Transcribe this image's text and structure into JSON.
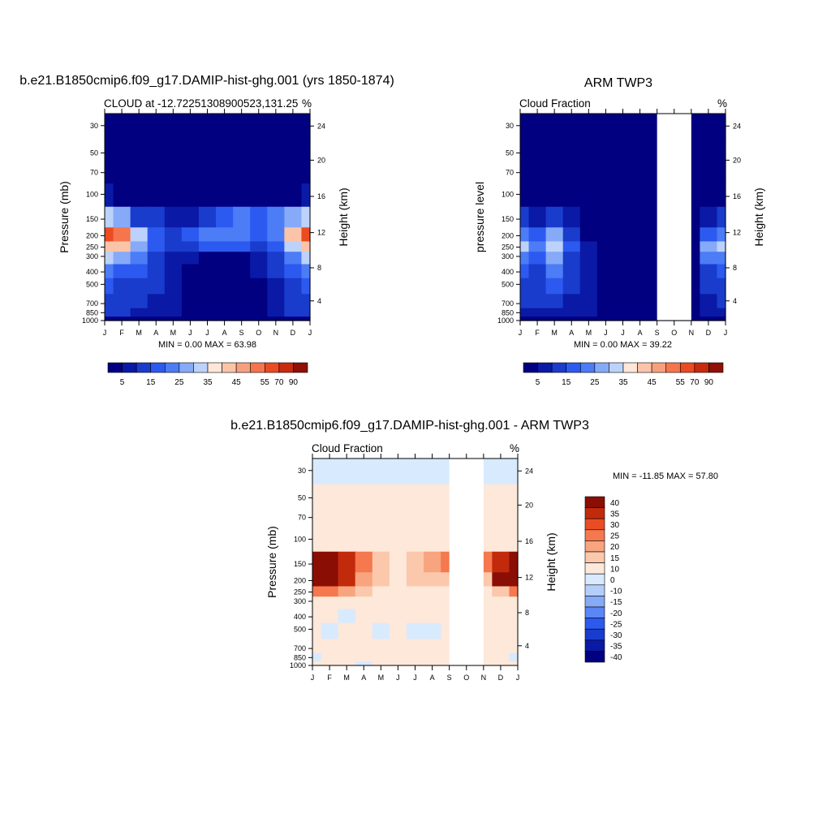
{
  "chart_data": [
    {
      "type": "heatmap",
      "title": "b.e21.B1850cmip6.f09_g17.DAMIP-hist-ghg.001 (yrs 1850-1874)",
      "left_label": "CLOUD at -12.72251308900523,131.25",
      "right_label": "%",
      "ylabel": "Pressure (mb)",
      "ylabel_right": "Height (km)",
      "x": [
        "J",
        "F",
        "M",
        "A",
        "M",
        "J",
        "J",
        "A",
        "S",
        "O",
        "N",
        "D",
        "J"
      ],
      "pressure_ticks": [
        "30",
        "50",
        "70",
        "100",
        "150",
        "200",
        "250",
        "300",
        "400",
        "500",
        "700",
        "850",
        "1000"
      ],
      "height_ticks": [
        "24",
        "20",
        "16",
        "12",
        "8",
        "4"
      ],
      "stats": "MIN =   0.00 MAX =  63.98",
      "colorbar_labels": [
        "5",
        "15",
        "25",
        "35",
        "45",
        "55",
        "70",
        "90"
      ],
      "rows": [
        [
          2,
          2,
          2,
          2,
          2,
          2,
          2,
          2,
          2,
          2,
          2,
          2,
          2
        ],
        [
          2,
          2,
          2,
          2,
          2,
          2,
          2,
          2,
          2,
          2,
          2,
          2,
          2
        ],
        [
          2,
          2,
          2,
          2,
          2,
          2,
          2,
          2,
          2,
          2,
          2,
          2,
          2
        ],
        [
          5,
          4,
          3,
          3,
          2,
          2,
          2,
          2,
          2,
          3,
          3,
          4,
          5
        ],
        [
          32,
          26,
          14,
          10,
          7,
          8,
          12,
          18,
          20,
          16,
          22,
          28,
          32
        ],
        [
          58,
          52,
          34,
          18,
          14,
          16,
          22,
          24,
          22,
          18,
          24,
          40,
          58
        ],
        [
          44,
          40,
          26,
          16,
          12,
          14,
          16,
          18,
          16,
          14,
          18,
          30,
          44
        ],
        [
          30,
          28,
          20,
          14,
          8,
          6,
          4,
          4,
          4,
          8,
          12,
          20,
          30
        ],
        [
          20,
          18,
          16,
          12,
          6,
          3,
          2,
          2,
          2,
          5,
          10,
          16,
          20
        ],
        [
          16,
          14,
          12,
          10,
          5,
          2,
          2,
          2,
          2,
          4,
          9,
          14,
          16
        ],
        [
          14,
          12,
          10,
          9,
          5,
          2,
          2,
          2,
          2,
          4,
          8,
          12,
          14
        ],
        [
          10,
          10,
          9,
          8,
          5,
          3,
          2,
          2,
          2,
          4,
          7,
          10,
          10
        ],
        [
          4,
          4,
          4,
          3,
          3,
          3,
          3,
          2,
          2,
          3,
          3,
          4,
          4
        ]
      ]
    },
    {
      "type": "heatmap",
      "title": "ARM TWP3",
      "left_label": "Cloud Fraction",
      "right_label": "%",
      "ylabel": "pressure level",
      "ylabel_right": "Height (km)",
      "x": [
        "J",
        "F",
        "M",
        "A",
        "M",
        "J",
        "J",
        "A",
        "S",
        "O",
        "N",
        "D",
        "J"
      ],
      "pressure_ticks": [
        "30",
        "50",
        "70",
        "100",
        "150",
        "200",
        "250",
        "300",
        "400",
        "500",
        "700",
        "850",
        "1000"
      ],
      "height_ticks": [
        "24",
        "20",
        "16",
        "12",
        "8",
        "4"
      ],
      "stats": "MIN =   0.00 MAX =  39.22",
      "colorbar_labels": [
        "5",
        "15",
        "25",
        "35",
        "45",
        "55",
        "70",
        "90"
      ],
      "missing_months": [
        "S",
        "O"
      ],
      "rows": [
        [
          1,
          1,
          1,
          1,
          1,
          1,
          1,
          1,
          1,
          1,
          1,
          1,
          1
        ],
        [
          1,
          1,
          1,
          1,
          1,
          1,
          1,
          1,
          1,
          1,
          1,
          1,
          1
        ],
        [
          1,
          1,
          1,
          1,
          1,
          1,
          1,
          1,
          1,
          1,
          1,
          1,
          1
        ],
        [
          1,
          1,
          1,
          1,
          1,
          1,
          1,
          1,
          1,
          1,
          1,
          1,
          1
        ],
        [
          10,
          8,
          14,
          6,
          2,
          1,
          1,
          1,
          1,
          1,
          1,
          8,
          10
        ],
        [
          24,
          18,
          28,
          12,
          4,
          2,
          1,
          1,
          1,
          1,
          1,
          18,
          24
        ],
        [
          30,
          20,
          34,
          16,
          6,
          2,
          1,
          1,
          1,
          1,
          1,
          28,
          30
        ],
        [
          24,
          18,
          28,
          14,
          6,
          2,
          1,
          1,
          1,
          1,
          1,
          22,
          24
        ],
        [
          16,
          14,
          22,
          12,
          6,
          2,
          1,
          1,
          1,
          1,
          1,
          14,
          16
        ],
        [
          12,
          12,
          16,
          10,
          8,
          3,
          1,
          1,
          1,
          1,
          1,
          10,
          12
        ],
        [
          10,
          10,
          12,
          8,
          8,
          3,
          1,
          1,
          1,
          1,
          1,
          8,
          10
        ],
        [
          8,
          8,
          8,
          6,
          6,
          2,
          1,
          1,
          1,
          1,
          1,
          6,
          8
        ],
        [
          4,
          4,
          4,
          3,
          3,
          2,
          1,
          1,
          1,
          1,
          1,
          3,
          4
        ]
      ]
    },
    {
      "type": "heatmap",
      "title": "b.e21.B1850cmip6.f09_g17.DAMIP-hist-ghg.001 - ARM TWP3",
      "left_label": "Cloud Fraction",
      "right_label": "%",
      "ylabel": "Pressure (mb)",
      "ylabel_right": "Height (km)",
      "x": [
        "J",
        "F",
        "M",
        "A",
        "M",
        "J",
        "J",
        "A",
        "S",
        "O",
        "N",
        "D",
        "J"
      ],
      "pressure_ticks": [
        "30",
        "50",
        "70",
        "100",
        "150",
        "200",
        "250",
        "300",
        "400",
        "500",
        "700",
        "850",
        "1000"
      ],
      "height_ticks": [
        "24",
        "20",
        "16",
        "12",
        "8",
        "4"
      ],
      "stats": "MIN = -11.85 MAX =  57.80",
      "colorbar_labels": [
        "40",
        "35",
        "30",
        "25",
        "20",
        "15",
        "10",
        "0",
        "-10",
        "-15",
        "-20",
        "-25",
        "-30",
        "-35",
        "-40"
      ],
      "missing_months": [
        "S",
        "O"
      ],
      "rows": [
        [
          -2,
          -2,
          -2,
          -2,
          -2,
          -2,
          -2,
          -2,
          -2,
          -2,
          -2,
          -2,
          -2
        ],
        [
          2,
          2,
          2,
          2,
          2,
          2,
          2,
          2,
          2,
          2,
          2,
          2,
          2
        ],
        [
          2,
          2,
          2,
          2,
          2,
          2,
          2,
          2,
          2,
          2,
          2,
          2,
          2
        ],
        [
          4,
          3,
          3,
          3,
          2,
          2,
          2,
          2,
          2,
          2,
          2,
          3,
          4
        ],
        [
          45,
          40,
          30,
          20,
          12,
          8,
          12,
          16,
          20,
          10,
          20,
          30,
          45
        ],
        [
          50,
          46,
          34,
          18,
          12,
          8,
          10,
          12,
          14,
          10,
          14,
          36,
          50
        ],
        [
          20,
          22,
          16,
          10,
          6,
          4,
          4,
          4,
          4,
          4,
          6,
          14,
          20
        ],
        [
          8,
          8,
          6,
          4,
          3,
          2,
          2,
          2,
          2,
          2,
          3,
          6,
          8
        ],
        [
          2,
          2,
          -2,
          2,
          2,
          2,
          2,
          2,
          2,
          2,
          2,
          2,
          2
        ],
        [
          2,
          -2,
          2,
          2,
          -2,
          2,
          -2,
          -2,
          2,
          2,
          2,
          2,
          2
        ],
        [
          2,
          2,
          2,
          2,
          2,
          2,
          2,
          2,
          2,
          2,
          2,
          2,
          2
        ],
        [
          -2,
          2,
          2,
          2,
          2,
          2,
          2,
          2,
          2,
          2,
          2,
          2,
          -2
        ],
        [
          2,
          2,
          2,
          -2,
          2,
          2,
          2,
          2,
          2,
          2,
          2,
          2,
          2
        ]
      ]
    }
  ]
}
